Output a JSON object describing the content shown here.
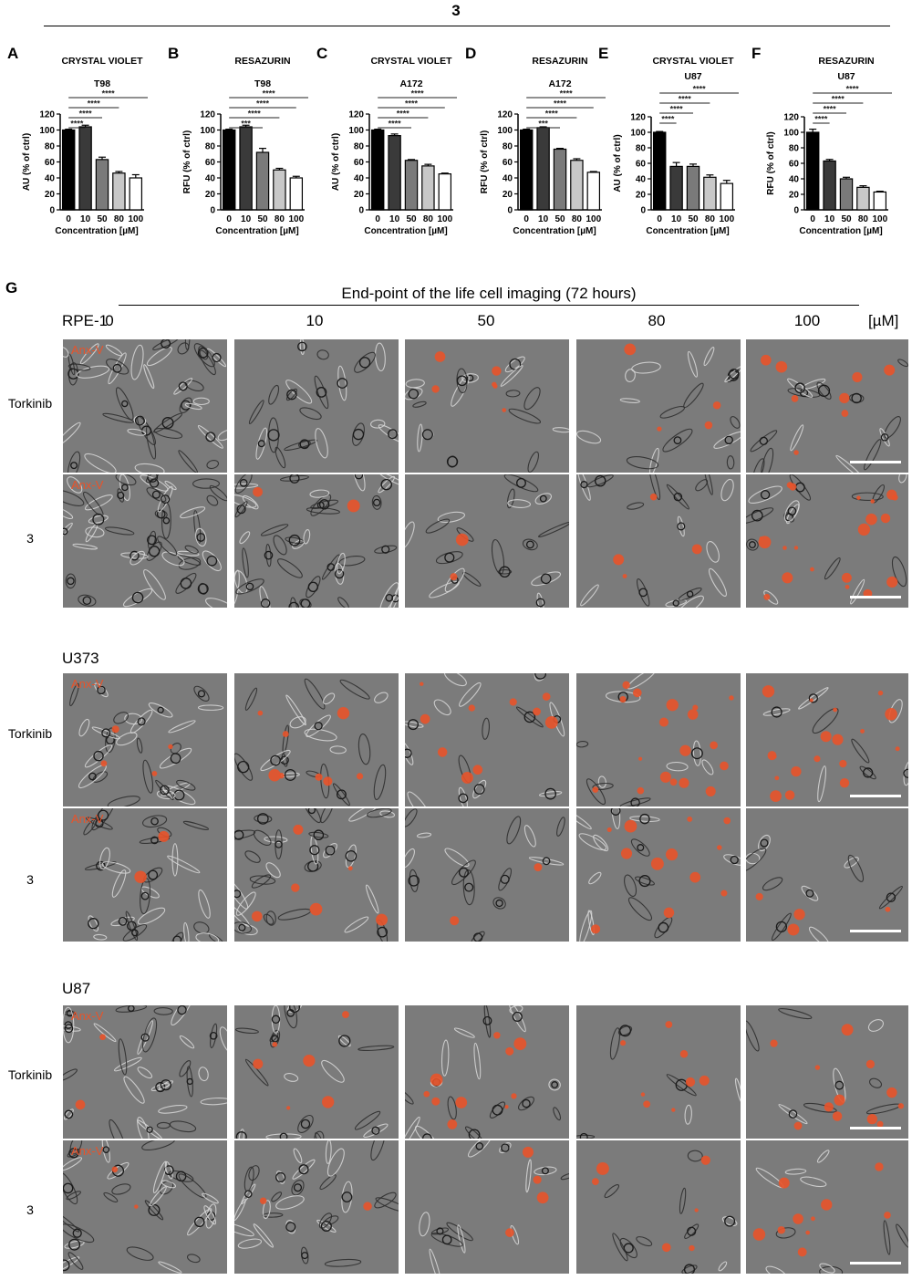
{
  "figure": {
    "top_title": "3",
    "g_label": "G",
    "g_title": "End-point of the life cell imaging (72 hours)",
    "unit": "[µM]",
    "concentrations": [
      "0",
      "10",
      "50",
      "80",
      "100"
    ],
    "annotation": "Anx-V",
    "annotation_color": "#e8532a",
    "cell_lines": [
      {
        "name": "RPE-1",
        "rows": [
          "Torkinib",
          "3"
        ]
      },
      {
        "name": "U373",
        "rows": [
          "Torkinib",
          "3"
        ]
      },
      {
        "name": "U87",
        "rows": [
          "Torkinib",
          "3"
        ]
      }
    ]
  },
  "chart_data": [
    {
      "type": "bar",
      "panel": "A",
      "assay": "CRYSTAL VIOLET",
      "cell": "T98",
      "categories": [
        "0",
        "10",
        "50",
        "80",
        "100"
      ],
      "values": [
        100,
        104,
        63,
        46,
        40
      ],
      "errors": [
        1,
        2,
        3,
        2,
        4
      ],
      "ylabel": "AU (% of ctrl)",
      "xlabel": "Concentration [µM]",
      "ylim": [
        0,
        120
      ],
      "yticks": [
        "0",
        "20",
        "40",
        "60",
        "80",
        "100",
        "120"
      ],
      "significance": [
        {
          "to": "10",
          "stars": "****"
        },
        {
          "to": "50",
          "stars": "****"
        },
        {
          "to": "80",
          "stars": "****"
        },
        {
          "to": "100",
          "stars": "****"
        }
      ],
      "colors": [
        "#000000",
        "#3a3a3a",
        "#7a7a7a",
        "#c8c8c8",
        "#ffffff"
      ]
    },
    {
      "type": "bar",
      "panel": "B",
      "assay": "RESAZURIN",
      "cell": "T98",
      "categories": [
        "0",
        "10",
        "50",
        "80",
        "100"
      ],
      "values": [
        100,
        104,
        72,
        50,
        40
      ],
      "errors": [
        1,
        2,
        5,
        2,
        2
      ],
      "ylabel": "RFU (% of ctrl)",
      "xlabel": "Concentration [µM]",
      "ylim": [
        0,
        120
      ],
      "yticks": [
        "0",
        "20",
        "40",
        "60",
        "80",
        "100",
        "120"
      ],
      "significance": [
        {
          "to": "50",
          "stars": "***"
        },
        {
          "to": "80",
          "stars": "****"
        },
        {
          "to": "100",
          "stars": "****"
        },
        {
          "to": "100",
          "stars": "****"
        }
      ],
      "colors": [
        "#000000",
        "#3a3a3a",
        "#7a7a7a",
        "#c8c8c8",
        "#ffffff"
      ]
    },
    {
      "type": "bar",
      "panel": "C",
      "assay": "CRYSTAL VIOLET",
      "cell": "A172",
      "categories": [
        "0",
        "10",
        "50",
        "80",
        "100"
      ],
      "values": [
        100,
        93,
        62,
        55,
        45
      ],
      "errors": [
        1,
        2,
        1,
        2,
        1
      ],
      "ylabel": "AU (% of ctrl)",
      "xlabel": "Concentration [µM]",
      "ylim": [
        0,
        120
      ],
      "yticks": [
        "0",
        "20",
        "40",
        "60",
        "80",
        "100",
        "120"
      ],
      "significance": [
        {
          "to": "50",
          "stars": "****"
        },
        {
          "to": "80",
          "stars": "****"
        },
        {
          "to": "100",
          "stars": "****"
        },
        {
          "to": "100",
          "stars": "****"
        }
      ],
      "colors": [
        "#000000",
        "#3a3a3a",
        "#7a7a7a",
        "#c8c8c8",
        "#ffffff"
      ]
    },
    {
      "type": "bar",
      "panel": "D",
      "assay": "RESAZURIN",
      "cell": "A172",
      "categories": [
        "0",
        "10",
        "50",
        "80",
        "100"
      ],
      "values": [
        100,
        103,
        76,
        62,
        47
      ],
      "errors": [
        1,
        1,
        1,
        2,
        1
      ],
      "ylabel": "RFU (% of ctrl)",
      "xlabel": "Concentration [µM]",
      "ylim": [
        0,
        120
      ],
      "yticks": [
        "0",
        "20",
        "40",
        "60",
        "80",
        "100",
        "120"
      ],
      "significance": [
        {
          "to": "50",
          "stars": "***"
        },
        {
          "to": "80",
          "stars": "****"
        },
        {
          "to": "100",
          "stars": "****"
        },
        {
          "to": "100",
          "stars": "****"
        }
      ],
      "colors": [
        "#000000",
        "#3a3a3a",
        "#7a7a7a",
        "#c8c8c8",
        "#ffffff"
      ]
    },
    {
      "type": "bar",
      "panel": "E",
      "assay": "CRYSTAL VIOLET",
      "cell": "U87",
      "categories": [
        "0",
        "10",
        "50",
        "80",
        "100"
      ],
      "values": [
        100,
        56,
        56,
        42,
        34
      ],
      "errors": [
        1,
        5,
        3,
        3,
        4
      ],
      "ylabel": "AU (% of ctrl)",
      "xlabel": "Concentration [µM]",
      "ylim": [
        0,
        120
      ],
      "yticks": [
        "0",
        "20",
        "40",
        "60",
        "80",
        "100",
        "120"
      ],
      "significance": [
        {
          "to": "10",
          "stars": "****"
        },
        {
          "to": "50",
          "stars": "****"
        },
        {
          "to": "80",
          "stars": "****"
        },
        {
          "to": "100",
          "stars": "****"
        }
      ],
      "colors": [
        "#000000",
        "#3a3a3a",
        "#7a7a7a",
        "#c8c8c8",
        "#ffffff"
      ]
    },
    {
      "type": "bar",
      "panel": "F",
      "assay": "RESAZURIN",
      "cell": "U87",
      "categories": [
        "0",
        "10",
        "50",
        "80",
        "100"
      ],
      "values": [
        100,
        63,
        40,
        29,
        23
      ],
      "errors": [
        4,
        2,
        2,
        2,
        1
      ],
      "ylabel": "RFU (% of ctrl)",
      "xlabel": "Concentration [µM]",
      "ylim": [
        0,
        120
      ],
      "yticks": [
        "0",
        "20",
        "40",
        "60",
        "80",
        "100",
        "120"
      ],
      "significance": [
        {
          "to": "10",
          "stars": "****"
        },
        {
          "to": "50",
          "stars": "****"
        },
        {
          "to": "80",
          "stars": "****"
        },
        {
          "to": "100",
          "stars": "****"
        }
      ],
      "colors": [
        "#000000",
        "#3a3a3a",
        "#7a7a7a",
        "#c8c8c8",
        "#ffffff"
      ]
    }
  ]
}
